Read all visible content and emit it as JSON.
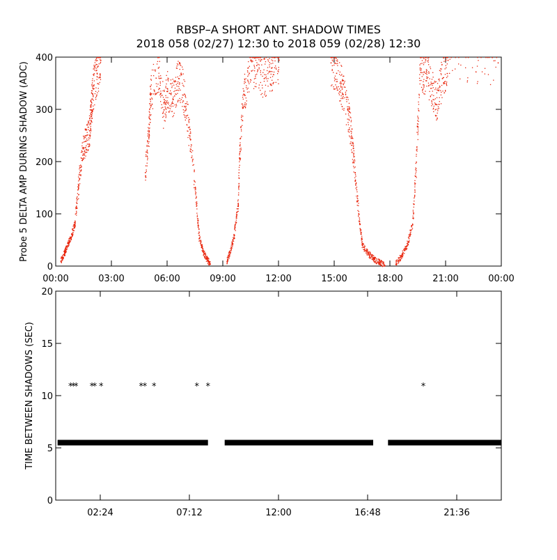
{
  "title_line1": "RBSP–A SHORT ANT. SHADOW TIMES",
  "title_line2": "2018 058 (02/27) 12:30 to 2018 059 (02/28) 12:30",
  "chart_data": [
    {
      "type": "scatter",
      "ylabel": "Probe 5 DELTA AMP DURING SHADOW (ADC)",
      "xlim": [
        0,
        24
      ],
      "ylim": [
        0,
        400
      ],
      "x_ticks": [
        {
          "value": 0,
          "label": "00:00"
        },
        {
          "value": 3,
          "label": "03:00"
        },
        {
          "value": 6,
          "label": "06:00"
        },
        {
          "value": 9,
          "label": "09:00"
        },
        {
          "value": 12,
          "label": "12:00"
        },
        {
          "value": 15,
          "label": "15:00"
        },
        {
          "value": 18,
          "label": "18:00"
        },
        {
          "value": 21,
          "label": "21:00"
        },
        {
          "value": 24,
          "label": "00:00"
        }
      ],
      "y_ticks": [
        0,
        100,
        200,
        300,
        400
      ],
      "point_color": "#e8230a",
      "series": [
        {
          "x": [
            0.25,
            0.45,
            0.6,
            0.8,
            1.0,
            1.2,
            1.4,
            1.6,
            1.8,
            1.9,
            2.0,
            2.2,
            2.4
          ],
          "y": [
            10,
            25,
            40,
            55,
            80,
            150,
            220,
            240,
            260,
            300,
            340,
            370,
            395
          ]
        },
        {
          "x": [
            4.8,
            5.0,
            5.1,
            5.5,
            5.8,
            6.0,
            6.3,
            6.6,
            6.9,
            7.2,
            7.5,
            7.7,
            7.9,
            8.1,
            8.3
          ],
          "y": [
            180,
            260,
            330,
            380,
            300,
            340,
            320,
            360,
            330,
            250,
            150,
            60,
            30,
            15,
            5
          ]
        },
        {
          "x": [
            9.2,
            9.4,
            9.6,
            9.8,
            9.9,
            10.1,
            10.4,
            10.8,
            11.2,
            11.6,
            12.0
          ],
          "y": [
            10,
            30,
            60,
            120,
            220,
            330,
            370,
            385,
            360,
            380,
            395
          ]
        },
        {
          "x": [
            14.8,
            15.1,
            15.4,
            15.7,
            15.9,
            16.1,
            16.3,
            16.5,
            16.8,
            17.1,
            17.4,
            17.7
          ],
          "y": [
            390,
            370,
            340,
            300,
            250,
            180,
            100,
            40,
            25,
            15,
            8,
            2
          ]
        },
        {
          "x": [
            18.3,
            18.6,
            18.9,
            19.2,
            19.4,
            19.6,
            19.9,
            20.2,
            20.5,
            20.8,
            21.1,
            23.8
          ],
          "y": [
            5,
            20,
            40,
            80,
            200,
            380,
            370,
            350,
            310,
            360,
            395,
            390
          ]
        }
      ]
    },
    {
      "type": "scatter",
      "ylabel": "TIME BETWEEN SHADOWS (SEC)",
      "xlim": [
        0,
        24
      ],
      "ylim": [
        0,
        20
      ],
      "x_ticks": [
        {
          "value": 2.4,
          "label": "02:24"
        },
        {
          "value": 7.2,
          "label": "07:12"
        },
        {
          "value": 12.0,
          "label": "12:00"
        },
        {
          "value": 16.8,
          "label": "16:48"
        },
        {
          "value": 21.6,
          "label": "21:36"
        }
      ],
      "y_ticks": [
        0,
        5,
        10,
        15,
        20
      ],
      "point_color": "#000000",
      "marker": "*",
      "baseline_value": 5.5,
      "baseline_segments": [
        [
          0.1,
          8.2
        ],
        [
          9.1,
          17.1
        ],
        [
          17.9,
          24.0
        ]
      ],
      "outliers": {
        "x": [
          0.8,
          0.95,
          1.1,
          1.95,
          2.1,
          2.45,
          4.6,
          4.8,
          5.3,
          7.6,
          8.2,
          19.8
        ],
        "y": [
          11,
          11,
          11,
          11,
          11,
          11,
          11,
          11,
          11,
          11,
          11,
          11
        ]
      }
    }
  ]
}
